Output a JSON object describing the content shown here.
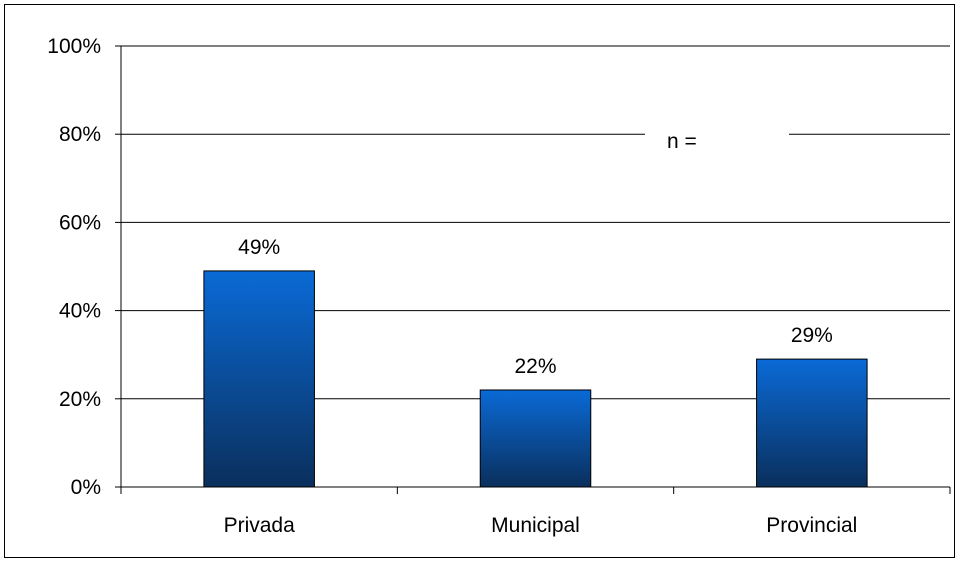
{
  "chart_data": {
    "type": "bar",
    "categories": [
      "Privada",
      "Municipal",
      "Provincial"
    ],
    "values": [
      49,
      22,
      29
    ],
    "data_labels": [
      "49%",
      "22%",
      "29%"
    ],
    "y_ticks": [
      0,
      20,
      40,
      60,
      80,
      100
    ],
    "y_tick_labels": [
      "0%",
      "20%",
      "40%",
      "60%",
      "80%",
      "100%"
    ],
    "ylim": [
      0,
      100
    ],
    "grid": true,
    "annotation": "n =",
    "bar_color_top": "#0a6ad6",
    "bar_color_bottom": "#0a2f5c",
    "axis_color": "#000000"
  }
}
